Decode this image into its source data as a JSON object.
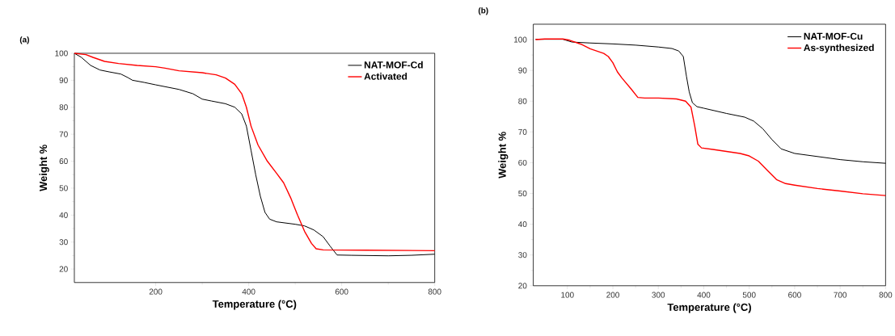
{
  "chart_data": [
    {
      "type": "line",
      "title": "(a)",
      "xlabel": "Temperature (°C)",
      "ylabel": "Weight %",
      "xlim": [
        25,
        800
      ],
      "ylim": [
        15,
        100
      ],
      "xticks": [
        200,
        400,
        600,
        800
      ],
      "yticks": [
        20,
        30,
        40,
        50,
        60,
        70,
        80,
        90,
        100
      ],
      "legend": "top right",
      "series": [
        {
          "name": "NAT-MOF-Cd",
          "color": "#000000",
          "x": [
            25,
            40,
            60,
            80,
            100,
            125,
            140,
            150,
            175,
            200,
            250,
            280,
            300,
            320,
            350,
            370,
            385,
            395,
            405,
            415,
            425,
            435,
            445,
            460,
            500,
            520,
            540,
            560,
            575,
            590,
            620,
            700,
            750,
            800
          ],
          "values": [
            100,
            98.5,
            95.5,
            93.8,
            93.1,
            92.3,
            91,
            90,
            89.2,
            88.3,
            86.6,
            85,
            83,
            82.3,
            81.3,
            80,
            77.5,
            73,
            64,
            55,
            47,
            41,
            38.5,
            37.5,
            36.6,
            36,
            34.5,
            32,
            28.5,
            25.2,
            25.1,
            24.9,
            25.1,
            25.5
          ]
        },
        {
          "name": "Activated",
          "color": "#ff0000",
          "x": [
            25,
            50,
            65,
            90,
            120,
            160,
            200,
            220,
            250,
            300,
            330,
            350,
            370,
            385,
            395,
            405,
            420,
            440,
            460,
            475,
            490,
            505,
            520,
            535,
            545,
            560,
            650,
            800
          ],
          "values": [
            100,
            99.5,
            98.5,
            97,
            96.2,
            95.5,
            95,
            94.5,
            93.5,
            92.8,
            92,
            90.8,
            88.5,
            85,
            80,
            73,
            66,
            60,
            55.5,
            52,
            46.5,
            40,
            34,
            29.5,
            27.5,
            27.1,
            27,
            26.8
          ]
        }
      ]
    },
    {
      "type": "line",
      "title": "(b)",
      "xlabel": "Temperature (°C)",
      "ylabel": "Weight %",
      "xlim": [
        25,
        800
      ],
      "ylim": [
        20,
        105
      ],
      "xticks": [
        100,
        200,
        300,
        400,
        500,
        600,
        700,
        800
      ],
      "yticks": [
        20,
        30,
        40,
        50,
        60,
        70,
        80,
        90,
        100
      ],
      "legend": "top right",
      "series": [
        {
          "name": "NAT-MOF-Cu",
          "color": "#000000",
          "x": [
            30,
            90,
            110,
            150,
            200,
            250,
            300,
            330,
            345,
            355,
            362,
            368,
            375,
            385,
            400,
            450,
            490,
            510,
            530,
            550,
            570,
            600,
            650,
            700,
            750,
            800
          ],
          "values": [
            100.1,
            100.1,
            99.2,
            98.9,
            98.6,
            98.2,
            97.6,
            97.1,
            96.3,
            94.5,
            88,
            83,
            79.5,
            78.2,
            77.7,
            76,
            74.8,
            73.5,
            71,
            67.5,
            64.5,
            63,
            62,
            61,
            60.3,
            59.8
          ]
        },
        {
          "name": "As-synthesized",
          "color": "#ff0000",
          "x": [
            30,
            50,
            90,
            105,
            130,
            150,
            180,
            190,
            200,
            210,
            220,
            240,
            255,
            270,
            300,
            340,
            360,
            372,
            380,
            387,
            395,
            420,
            480,
            500,
            520,
            540,
            560,
            580,
            600,
            650,
            700,
            750,
            800
          ],
          "values": [
            100,
            100.2,
            100.2,
            99.8,
            98.5,
            97,
            95.5,
            94.5,
            92.5,
            89.5,
            87.5,
            84,
            81.2,
            81,
            81,
            80.7,
            80,
            78,
            72,
            66,
            64.8,
            64.3,
            63,
            62.2,
            60.5,
            57.5,
            54.5,
            53.2,
            52.7,
            51.6,
            50.8,
            49.9,
            49.3
          ]
        }
      ]
    }
  ]
}
